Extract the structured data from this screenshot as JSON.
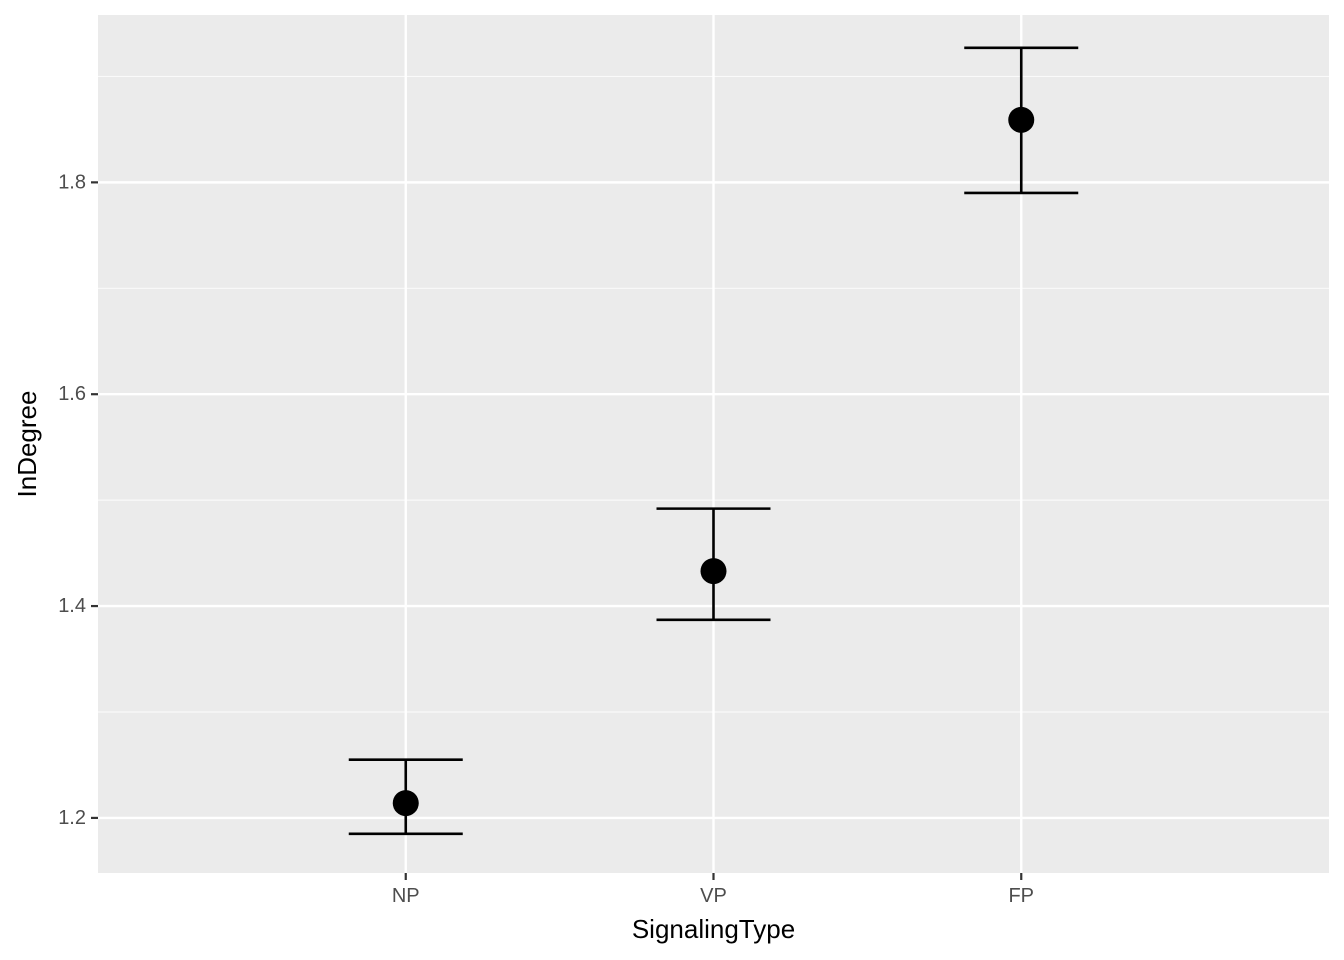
{
  "chart_data": {
    "type": "scatter",
    "subtype": "point-with-error-bars",
    "title": "",
    "xlabel": "SignalingType",
    "ylabel": "InDegree",
    "categories": [
      "NP",
      "VP",
      "FP"
    ],
    "values": [
      1.214,
      1.433,
      1.859
    ],
    "error_lower": [
      1.185,
      1.387,
      1.79
    ],
    "error_upper": [
      1.255,
      1.492,
      1.927
    ],
    "ylim": [
      1.148,
      1.958
    ],
    "y_ticks": [
      1.2,
      1.4,
      1.6,
      1.8
    ],
    "y_tick_labels": [
      "1.2",
      "1.4",
      "1.6",
      "1.8"
    ],
    "grid": true,
    "legend": "none",
    "colors": {
      "panel_background": "#ebebeb",
      "grid_major": "#ffffff",
      "grid_minor": "#f5f5f5",
      "point": "#000000",
      "errorbar": "#000000",
      "tick_text": "#4d4d4d",
      "tick_mark": "#333333",
      "axis_title": "#000000"
    }
  }
}
